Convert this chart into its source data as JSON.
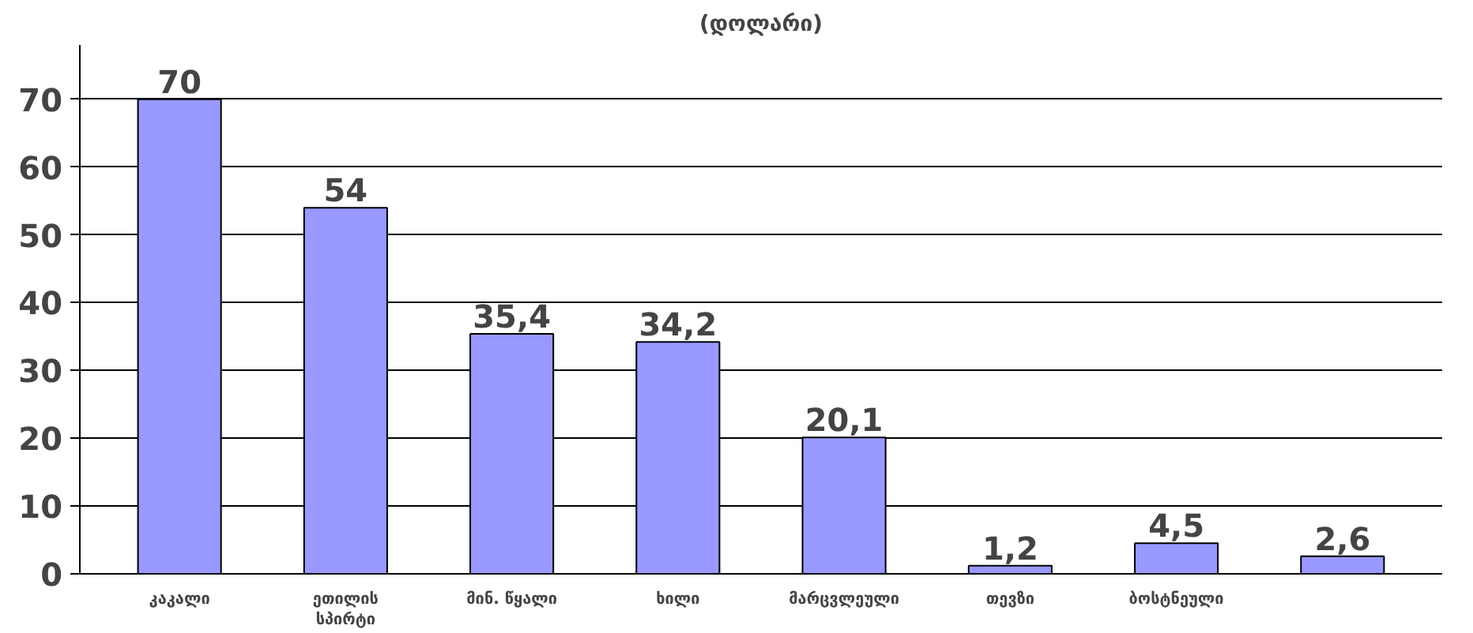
{
  "chart_data": {
    "type": "bar",
    "title": "(დოლარი)",
    "categories": [
      "კაკალი",
      "ეთილის სპირტი",
      "მინ. წყალი",
      "ხილი",
      "მარცვლეული",
      "თევზი",
      "ბოსტნეული",
      null
    ],
    "values": [
      70,
      54,
      35.4,
      34.2,
      20.1,
      1.2,
      4.5,
      2.6
    ],
    "value_labels": [
      "70",
      "54",
      "35,4",
      "34,2",
      "20,1",
      "1,2",
      "4,5",
      "2,6"
    ],
    "color": "#9999ff",
    "ylim": [
      0,
      78
    ],
    "yticks": [
      0,
      10,
      20,
      30,
      40,
      50,
      60,
      70
    ],
    "grid": "y"
  }
}
